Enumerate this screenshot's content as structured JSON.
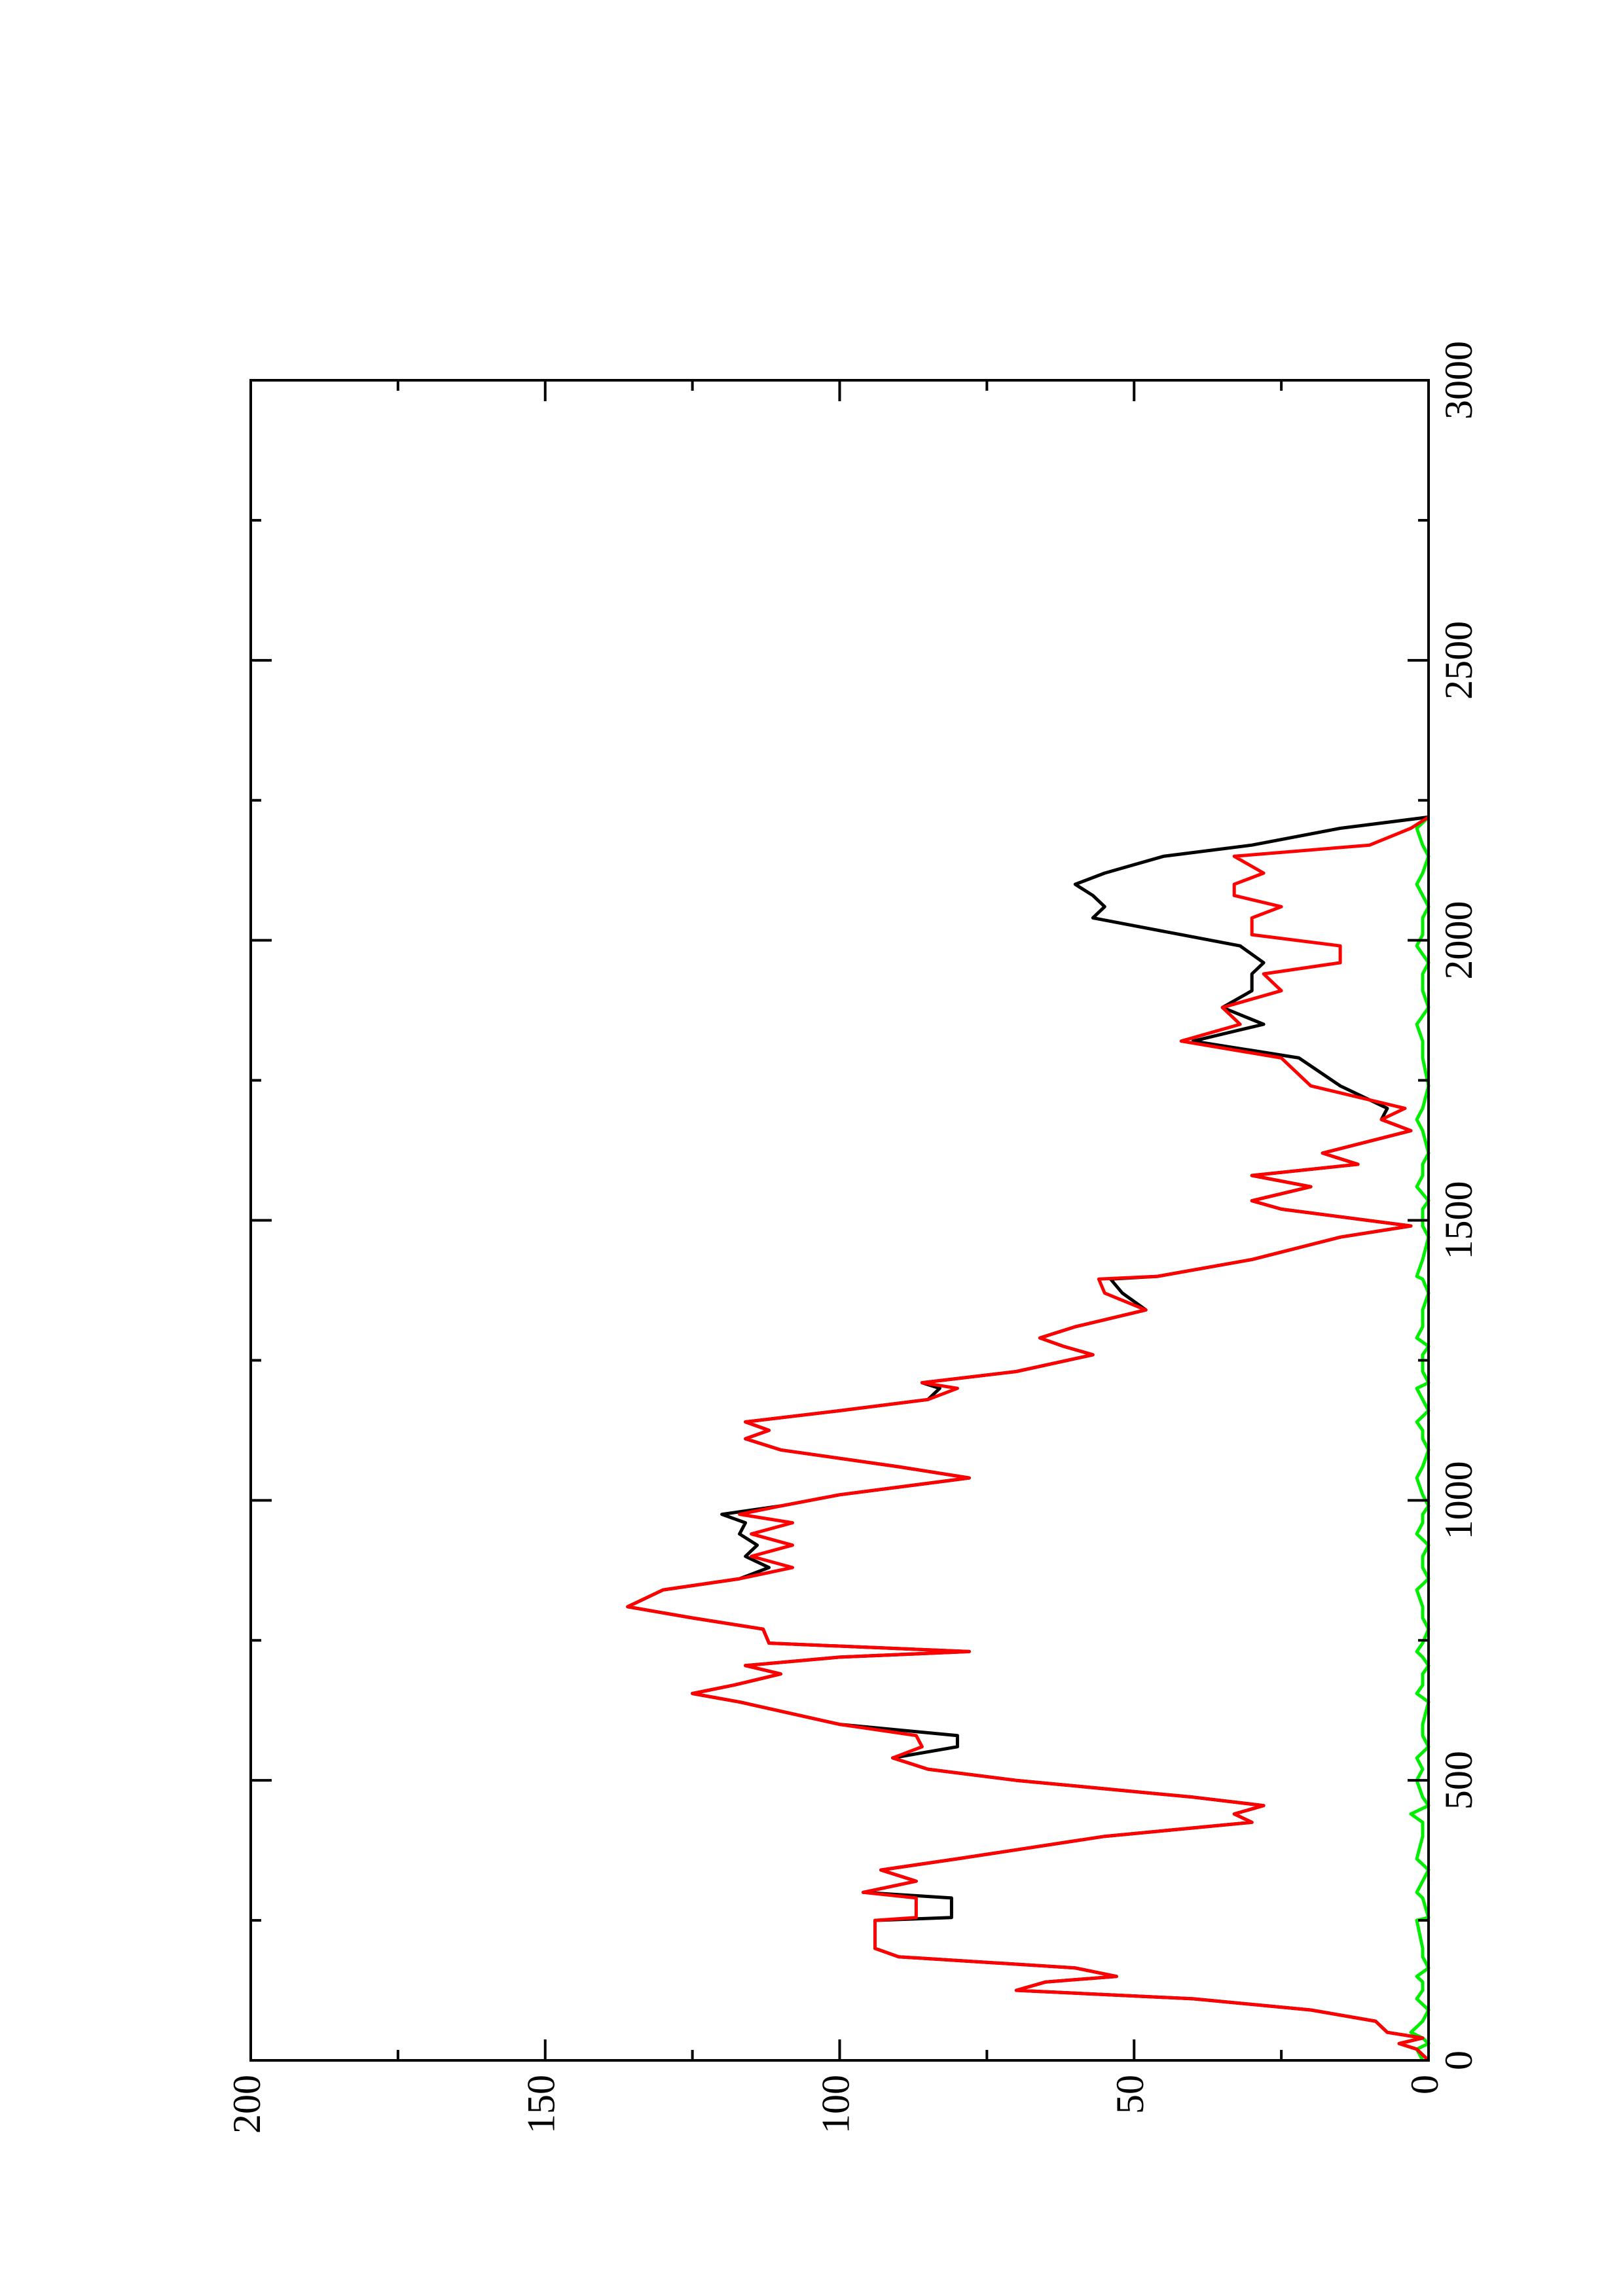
{
  "chart_data": {
    "type": "line",
    "x": [
      0,
      20,
      30,
      40,
      50,
      70,
      90,
      110,
      125,
      140,
      150,
      165,
      185,
      200,
      250,
      255,
      290,
      300,
      320,
      340,
      360,
      400,
      425,
      440,
      455,
      470,
      500,
      520,
      540,
      560,
      580,
      600,
      640,
      655,
      670,
      690,
      705,
      720,
      730,
      745,
      770,
      790,
      810,
      840,
      860,
      880,
      900,
      920,
      940,
      960,
      975,
      990,
      1010,
      1040,
      1060,
      1090,
      1110,
      1125,
      1140,
      1160,
      1180,
      1200,
      1210,
      1230,
      1260,
      1275,
      1290,
      1310,
      1340,
      1370,
      1395,
      1400,
      1430,
      1470,
      1490,
      1520,
      1535,
      1560,
      1580,
      1600,
      1620,
      1660,
      1680,
      1700,
      1740,
      1790,
      1820,
      1850,
      1880,
      1910,
      1940,
      1960,
      1990,
      2010,
      2040,
      2060,
      2080,
      2100,
      2120,
      2150,
      2170,
      2200,
      2220
    ],
    "series": [
      {
        "color": "#00ee00",
        "values": [
          1,
          2,
          0,
          1,
          3,
          1,
          0,
          2,
          1,
          1,
          2,
          0,
          1,
          1,
          2,
          0,
          1,
          2,
          1,
          0,
          2,
          1,
          1,
          3,
          0,
          1,
          2,
          1,
          2,
          0,
          1,
          1,
          0,
          2,
          1,
          1,
          0,
          1,
          2,
          1,
          0,
          1,
          1,
          2,
          0,
          1,
          1,
          0,
          2,
          1,
          1,
          0,
          1,
          2,
          1,
          0,
          1,
          1,
          2,
          0,
          1,
          2,
          0,
          1,
          1,
          0,
          2,
          1,
          1,
          0,
          1,
          2,
          1,
          0,
          1,
          1,
          0,
          2,
          1,
          1,
          0,
          1,
          2,
          1,
          0,
          1,
          1,
          2,
          0,
          1,
          1,
          0,
          2,
          1,
          1,
          0,
          1,
          2,
          1,
          0,
          1,
          2,
          0
        ]
      },
      {
        "color": "#000000",
        "values": [
          0,
          2,
          5,
          1,
          7,
          9,
          20,
          40,
          70,
          65,
          53,
          60,
          90,
          94,
          94,
          81,
          81,
          96,
          87,
          93,
          80,
          55,
          30,
          33,
          28,
          40,
          70,
          85,
          91,
          80,
          80,
          100,
          117,
          125,
          118,
          110,
          116,
          100,
          78,
          112,
          113,
          125,
          136,
          130,
          117,
          112,
          116,
          114,
          117,
          116,
          120,
          110,
          100,
          78,
          90,
          110,
          116,
          112,
          116,
          100,
          85,
          83,
          86,
          70,
          57,
          62,
          66,
          60,
          48,
          52,
          54,
          46,
          30,
          15,
          3,
          25,
          30,
          20,
          30,
          12,
          18,
          3,
          8,
          7,
          15,
          22,
          40,
          28,
          35,
          30,
          30,
          28,
          32,
          42,
          57,
          55,
          57,
          60,
          55,
          45,
          30,
          15,
          0
        ]
      },
      {
        "color": "#ff0000",
        "values": [
          0,
          2,
          5,
          1,
          7,
          9,
          20,
          40,
          70,
          65,
          53,
          60,
          90,
          94,
          94,
          87,
          87,
          96,
          87,
          93,
          80,
          55,
          30,
          33,
          28,
          40,
          70,
          85,
          91,
          86,
          87,
          100,
          117,
          125,
          118,
          110,
          116,
          100,
          78,
          112,
          113,
          125,
          136,
          130,
          117,
          108,
          115,
          108,
          115,
          108,
          117,
          110,
          100,
          78,
          90,
          110,
          116,
          112,
          116,
          100,
          85,
          80,
          86,
          70,
          57,
          62,
          66,
          60,
          48,
          55,
          56,
          46,
          30,
          15,
          3,
          25,
          30,
          20,
          30,
          12,
          18,
          3,
          8,
          4,
          20,
          25,
          42,
          32,
          35,
          25,
          28,
          15,
          15,
          30,
          30,
          25,
          33,
          33,
          28,
          33,
          10,
          3,
          0
        ]
      }
    ],
    "xlim": [
      0,
      3000
    ],
    "xticks": [
      0,
      500,
      1000,
      1500,
      2000,
      2500,
      3000
    ],
    "xticks_minor": [
      250,
      750,
      1250,
      1750,
      2250,
      2750
    ],
    "ylim": [
      0,
      200
    ],
    "yticks": [
      0,
      50,
      100,
      150,
      200
    ],
    "yticks_minor": [
      25,
      75,
      125,
      175
    ],
    "rotation": -90
  }
}
